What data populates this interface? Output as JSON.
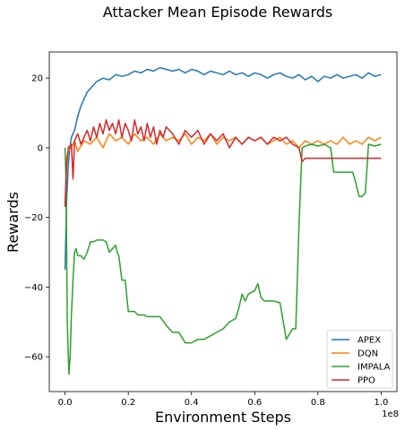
{
  "chart_data": {
    "type": "line",
    "title": "Attacker Mean Episode Rewards",
    "xlabel": "Environment Steps",
    "ylabel": "Rewards",
    "x_offset_label": "1e8",
    "xlim": [
      -0.05,
      1.05
    ],
    "ylim": [
      -70,
      27.5
    ],
    "xticks": [
      0.0,
      0.2,
      0.4,
      0.6,
      0.8,
      1.0
    ],
    "xtick_labels": [
      "0.0",
      "0.2",
      "0.4",
      "0.6",
      "0.8",
      "1.0"
    ],
    "yticks": [
      -60,
      -40,
      -20,
      0,
      20
    ],
    "ytick_labels": [
      "−60",
      "−40",
      "−20",
      "0",
      "20"
    ],
    "grid": false,
    "legend_position": "lower-right",
    "series": [
      {
        "name": "APEX",
        "color": "#1f77b4",
        "x": [
          0.0,
          0.005,
          0.01,
          0.015,
          0.02,
          0.03,
          0.04,
          0.05,
          0.06,
          0.07,
          0.08,
          0.1,
          0.12,
          0.14,
          0.16,
          0.18,
          0.2,
          0.22,
          0.24,
          0.26,
          0.28,
          0.3,
          0.32,
          0.34,
          0.36,
          0.38,
          0.4,
          0.42,
          0.44,
          0.46,
          0.48,
          0.5,
          0.52,
          0.54,
          0.56,
          0.58,
          0.6,
          0.62,
          0.64,
          0.66,
          0.68,
          0.7,
          0.72,
          0.74,
          0.76,
          0.78,
          0.8,
          0.82,
          0.84,
          0.86,
          0.88,
          0.9,
          0.92,
          0.94,
          0.96,
          0.98,
          1.0
        ],
        "y": [
          -35,
          -15,
          -5,
          0,
          3,
          5,
          9,
          12,
          14,
          16,
          17,
          19,
          20,
          19.5,
          21,
          20.5,
          21,
          22,
          21.5,
          22.5,
          22,
          23,
          22.5,
          22,
          22.5,
          21.5,
          22.5,
          22,
          21,
          22,
          21.5,
          21,
          22,
          21,
          21.5,
          20.5,
          21.5,
          21,
          20,
          21,
          21.5,
          20.5,
          20,
          21,
          19.5,
          20.5,
          19,
          20.5,
          20,
          21,
          20,
          20.5,
          21,
          20,
          21.5,
          20.5,
          21
        ]
      },
      {
        "name": "DQN",
        "color": "#ff7f0e",
        "x": [
          0.0,
          0.005,
          0.01,
          0.02,
          0.03,
          0.04,
          0.06,
          0.08,
          0.1,
          0.12,
          0.14,
          0.16,
          0.18,
          0.2,
          0.22,
          0.24,
          0.26,
          0.28,
          0.3,
          0.32,
          0.34,
          0.36,
          0.38,
          0.4,
          0.42,
          0.44,
          0.46,
          0.48,
          0.5,
          0.52,
          0.54,
          0.56,
          0.58,
          0.6,
          0.62,
          0.64,
          0.66,
          0.68,
          0.7,
          0.72,
          0.74,
          0.76,
          0.78,
          0.8,
          0.82,
          0.84,
          0.86,
          0.88,
          0.9,
          0.92,
          0.94,
          0.96,
          0.98,
          1.0
        ],
        "y": [
          -16,
          -3,
          -1,
          0,
          2,
          -1,
          2,
          1,
          3,
          0,
          4,
          2,
          3,
          1,
          4,
          2,
          3,
          1,
          4,
          2,
          3,
          2,
          4,
          1,
          3,
          2,
          4,
          1,
          3,
          2,
          3,
          1,
          3,
          2,
          3,
          1,
          2,
          3,
          1,
          2,
          0,
          2,
          1,
          2,
          1,
          2,
          1,
          3,
          1,
          2,
          1,
          3,
          2,
          3
        ]
      },
      {
        "name": "IMPALA",
        "color": "#2ca02c",
        "x": [
          0.0,
          0.003,
          0.007,
          0.012,
          0.016,
          0.02,
          0.025,
          0.03,
          0.035,
          0.04,
          0.05,
          0.06,
          0.07,
          0.08,
          0.09,
          0.1,
          0.11,
          0.12,
          0.13,
          0.14,
          0.16,
          0.165,
          0.17,
          0.18,
          0.19,
          0.2,
          0.22,
          0.23,
          0.24,
          0.25,
          0.26,
          0.3,
          0.32,
          0.34,
          0.36,
          0.38,
          0.4,
          0.42,
          0.44,
          0.46,
          0.48,
          0.5,
          0.52,
          0.54,
          0.55,
          0.56,
          0.57,
          0.58,
          0.6,
          0.61,
          0.62,
          0.63,
          0.64,
          0.65,
          0.66,
          0.68,
          0.7,
          0.72,
          0.73,
          0.74,
          0.75,
          0.76,
          0.78,
          0.8,
          0.82,
          0.84,
          0.85,
          0.86,
          0.87,
          0.88,
          0.9,
          0.91,
          0.92,
          0.93,
          0.94,
          0.95,
          0.96,
          0.98,
          1.0
        ],
        "y": [
          0,
          -10,
          -50,
          -65,
          -60,
          -48,
          -38,
          -30,
          -29,
          -31,
          -31,
          -32,
          -30,
          -27,
          -27,
          -26.5,
          -26.5,
          -26.5,
          -27,
          -30,
          -28,
          -30,
          -31,
          -38,
          -38,
          -47,
          -47,
          -48,
          -48,
          -48,
          -48.5,
          -48.5,
          -51,
          -53,
          -53,
          -56,
          -56,
          -55,
          -55,
          -54,
          -53,
          -52,
          -50,
          -49,
          -46,
          -42,
          -44,
          -42,
          -41,
          -39,
          -43,
          -44,
          -44,
          -44,
          -44,
          -44.5,
          -55,
          -52,
          -52,
          -22,
          0,
          0.5,
          1,
          0.5,
          1,
          0,
          -7,
          -7,
          -7,
          -7,
          -7,
          -7,
          -10,
          -14,
          -14,
          -13,
          1,
          0.5,
          1
        ]
      },
      {
        "name": "PPO",
        "color": "#d62728",
        "x": [
          0.0,
          0.005,
          0.01,
          0.02,
          0.025,
          0.03,
          0.04,
          0.05,
          0.06,
          0.07,
          0.08,
          0.09,
          0.1,
          0.11,
          0.12,
          0.13,
          0.14,
          0.15,
          0.16,
          0.17,
          0.18,
          0.19,
          0.2,
          0.21,
          0.22,
          0.23,
          0.24,
          0.25,
          0.26,
          0.27,
          0.28,
          0.29,
          0.3,
          0.31,
          0.32,
          0.34,
          0.36,
          0.38,
          0.4,
          0.42,
          0.44,
          0.46,
          0.48,
          0.5,
          0.52,
          0.54,
          0.56,
          0.58,
          0.6,
          0.62,
          0.64,
          0.66,
          0.68,
          0.7,
          0.72,
          0.74,
          0.75,
          0.76,
          0.8,
          0.85,
          0.9,
          0.95,
          1.0
        ],
        "y": [
          -17,
          -5,
          0,
          1,
          -9,
          2,
          4,
          1,
          3,
          5,
          2,
          6,
          3,
          7,
          4,
          8,
          5,
          7,
          4,
          8,
          3,
          7,
          5,
          2,
          8,
          4,
          6,
          2,
          7,
          3,
          6,
          1,
          5,
          3,
          6,
          4,
          1,
          5,
          3,
          5,
          1,
          4,
          2,
          4,
          0,
          3,
          1,
          3,
          2,
          3,
          1,
          3,
          2,
          3,
          1,
          0,
          -4,
          -3,
          -3,
          -3,
          -3,
          -3,
          -3
        ]
      }
    ]
  }
}
